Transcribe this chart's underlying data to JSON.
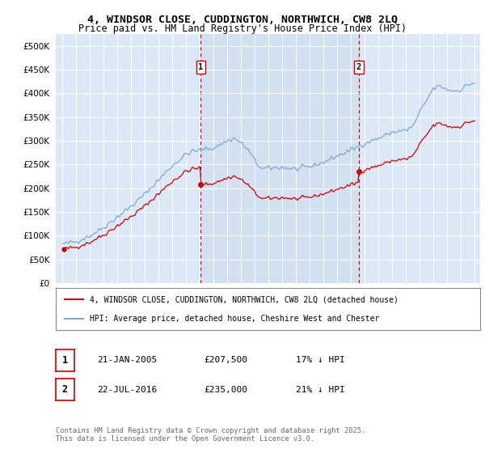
{
  "title_line1": "4, WINDSOR CLOSE, CUDDINGTON, NORTHWICH, CW8 2LQ",
  "title_line2": "Price paid vs. HM Land Registry's House Price Index (HPI)",
  "plot_bg_color": "#dce8f5",
  "plot_bg_color2": "#ccdcef",
  "red_color": "#cc0000",
  "blue_color": "#7aaad0",
  "ylim": [
    0,
    525000
  ],
  "yticks": [
    0,
    50000,
    100000,
    150000,
    200000,
    250000,
    300000,
    350000,
    400000,
    450000,
    500000
  ],
  "annotation1": {
    "label": "1",
    "price": "£207,500",
    "pct": "17% ↓ HPI",
    "date_str": "21-JAN-2005"
  },
  "annotation2": {
    "label": "2",
    "price": "£235,000",
    "pct": "21% ↓ HPI",
    "date_str": "22-JUL-2016"
  },
  "legend_line1": "4, WINDSOR CLOSE, CUDDINGTON, NORTHWICH, CW8 2LQ (detached house)",
  "legend_line2": "HPI: Average price, detached house, Cheshire West and Chester",
  "footnote": "Contains HM Land Registry data © Crown copyright and database right 2025.\nThis data is licensed under the Open Government Licence v3.0.",
  "sale1_t": 2005.055,
  "sale1_v": 207500,
  "sale2_t": 2016.558,
  "sale2_v": 235000,
  "sale0_t": 1995.083,
  "sale0_v": 72000
}
